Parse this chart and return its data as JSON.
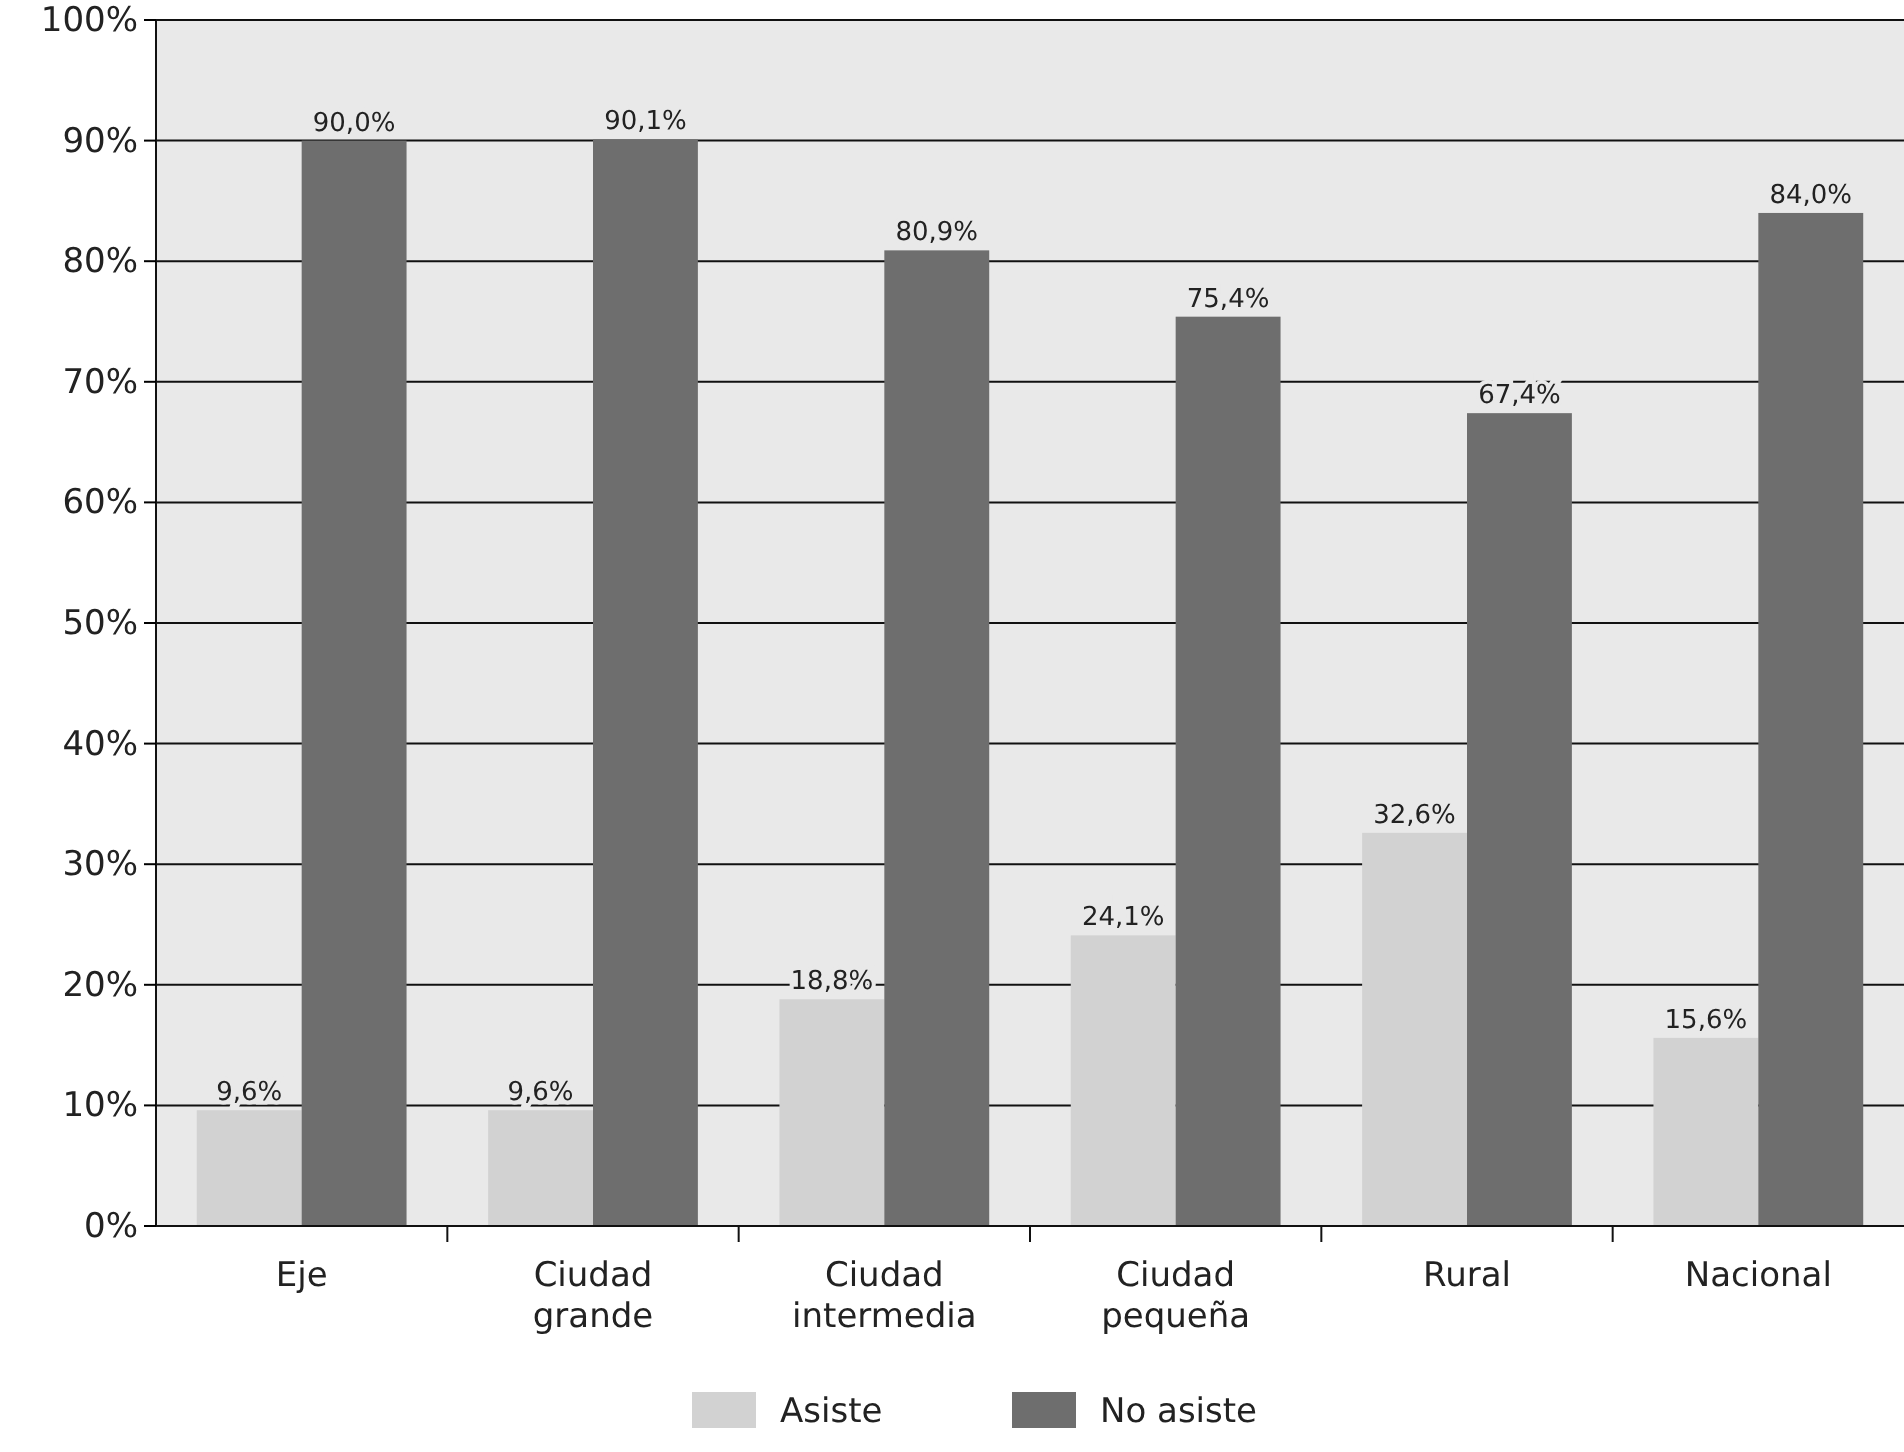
{
  "chart_data": {
    "type": "bar",
    "categories": [
      "Eje",
      "Ciudad grande",
      "Ciudad intermedia",
      "Ciudad pequeña",
      "Rural",
      "Nacional"
    ],
    "series": [
      {
        "name": "Asiste",
        "color": "#d2d2d2",
        "values": [
          9.6,
          9.6,
          18.8,
          24.1,
          32.6,
          15.6
        ],
        "value_labels": [
          "9,6%",
          "9,6%",
          "18,8%",
          "24,1%",
          "32,6%",
          "15,6%"
        ]
      },
      {
        "name": "No asiste",
        "color": "#6e6e6e",
        "values": [
          90.0,
          90.1,
          80.9,
          75.4,
          67.4,
          84.0
        ],
        "value_labels": [
          "90,0%",
          "90,1%",
          "80,9%",
          "75,4%",
          "67,4%",
          "84,0%"
        ]
      }
    ],
    "ylim": [
      0,
      100
    ],
    "yticks": [
      {
        "value": 0,
        "label": "0%"
      },
      {
        "value": 10,
        "label": "10%"
      },
      {
        "value": 20,
        "label": "20%"
      },
      {
        "value": 30,
        "label": "30%"
      },
      {
        "value": 40,
        "label": "40%"
      },
      {
        "value": 50,
        "label": "50%"
      },
      {
        "value": 60,
        "label": "60%"
      },
      {
        "value": 70,
        "label": "70%"
      },
      {
        "value": 80,
        "label": "80%"
      },
      {
        "value": 90,
        "label": "90%"
      },
      {
        "value": 100,
        "label": "100%"
      }
    ],
    "grid": "y",
    "legend": "bottom"
  }
}
